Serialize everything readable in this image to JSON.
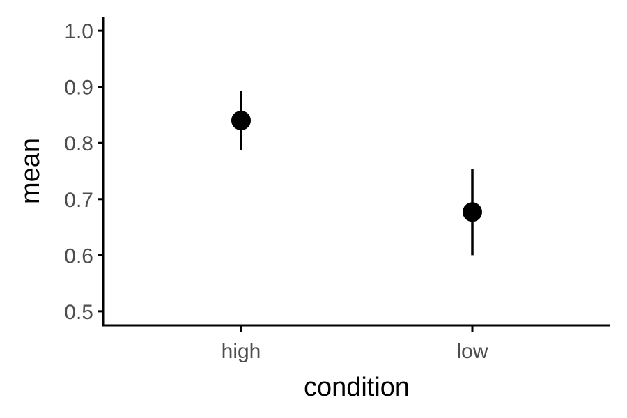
{
  "chart_data": {
    "type": "scatter",
    "title": "",
    "xlabel": "condition",
    "ylabel": "mean",
    "categories": [
      "high",
      "low"
    ],
    "points": [
      {
        "category": "high",
        "mean": 0.84,
        "lower": 0.787,
        "upper": 0.893
      },
      {
        "category": "low",
        "mean": 0.677,
        "lower": 0.6,
        "upper": 0.754
      }
    ],
    "ylim": [
      0.475,
      1.025
    ],
    "yticks": [
      0.5,
      0.6,
      0.7,
      0.8,
      0.9,
      1.0
    ],
    "ytick_labels": [
      "0.5",
      "0.6",
      "0.7",
      "0.8",
      "0.9",
      "1.0"
    ],
    "grid": false,
    "legend": "none",
    "colors": {
      "point": "#000000",
      "errorbar": "#000000",
      "axis": "#000000",
      "tick_text": "#4d4d4d",
      "axis_title": "#000000"
    }
  }
}
